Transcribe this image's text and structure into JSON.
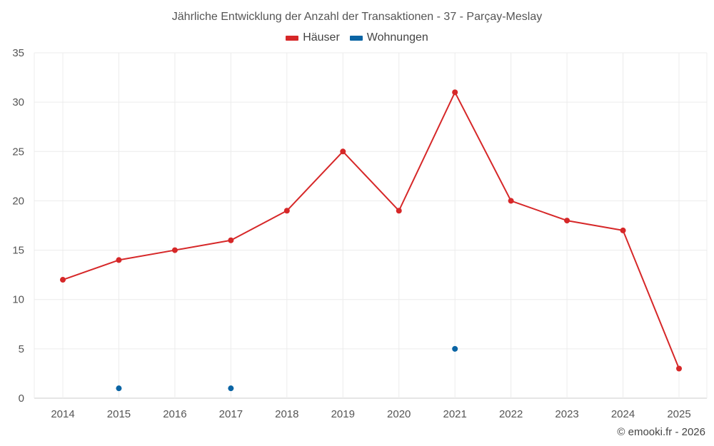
{
  "chart_data": {
    "type": "line",
    "title": "Jährliche Entwicklung der Anzahl der Transaktionen - 37 - Parçay-Meslay",
    "categories": [
      "2014",
      "2015",
      "2016",
      "2017",
      "2018",
      "2019",
      "2020",
      "2021",
      "2022",
      "2023",
      "2024",
      "2025"
    ],
    "series": [
      {
        "name": "Häuser",
        "color": "#d62728",
        "values": [
          12,
          14,
          15,
          16,
          19,
          25,
          19,
          31,
          20,
          18,
          17,
          3
        ],
        "style": "line+markers"
      },
      {
        "name": "Wohnungen",
        "color": "#0a64a4",
        "values": [
          null,
          1,
          null,
          1,
          null,
          null,
          null,
          5,
          null,
          null,
          null,
          null
        ],
        "style": "markers"
      }
    ],
    "ylim": [
      0,
      35
    ],
    "yticks": [
      0,
      5,
      10,
      15,
      20,
      25,
      30,
      35
    ],
    "grid": true,
    "legend_position": "top-center",
    "xlabel": "",
    "ylabel": ""
  },
  "credit": "© emooki.fr - 2026"
}
